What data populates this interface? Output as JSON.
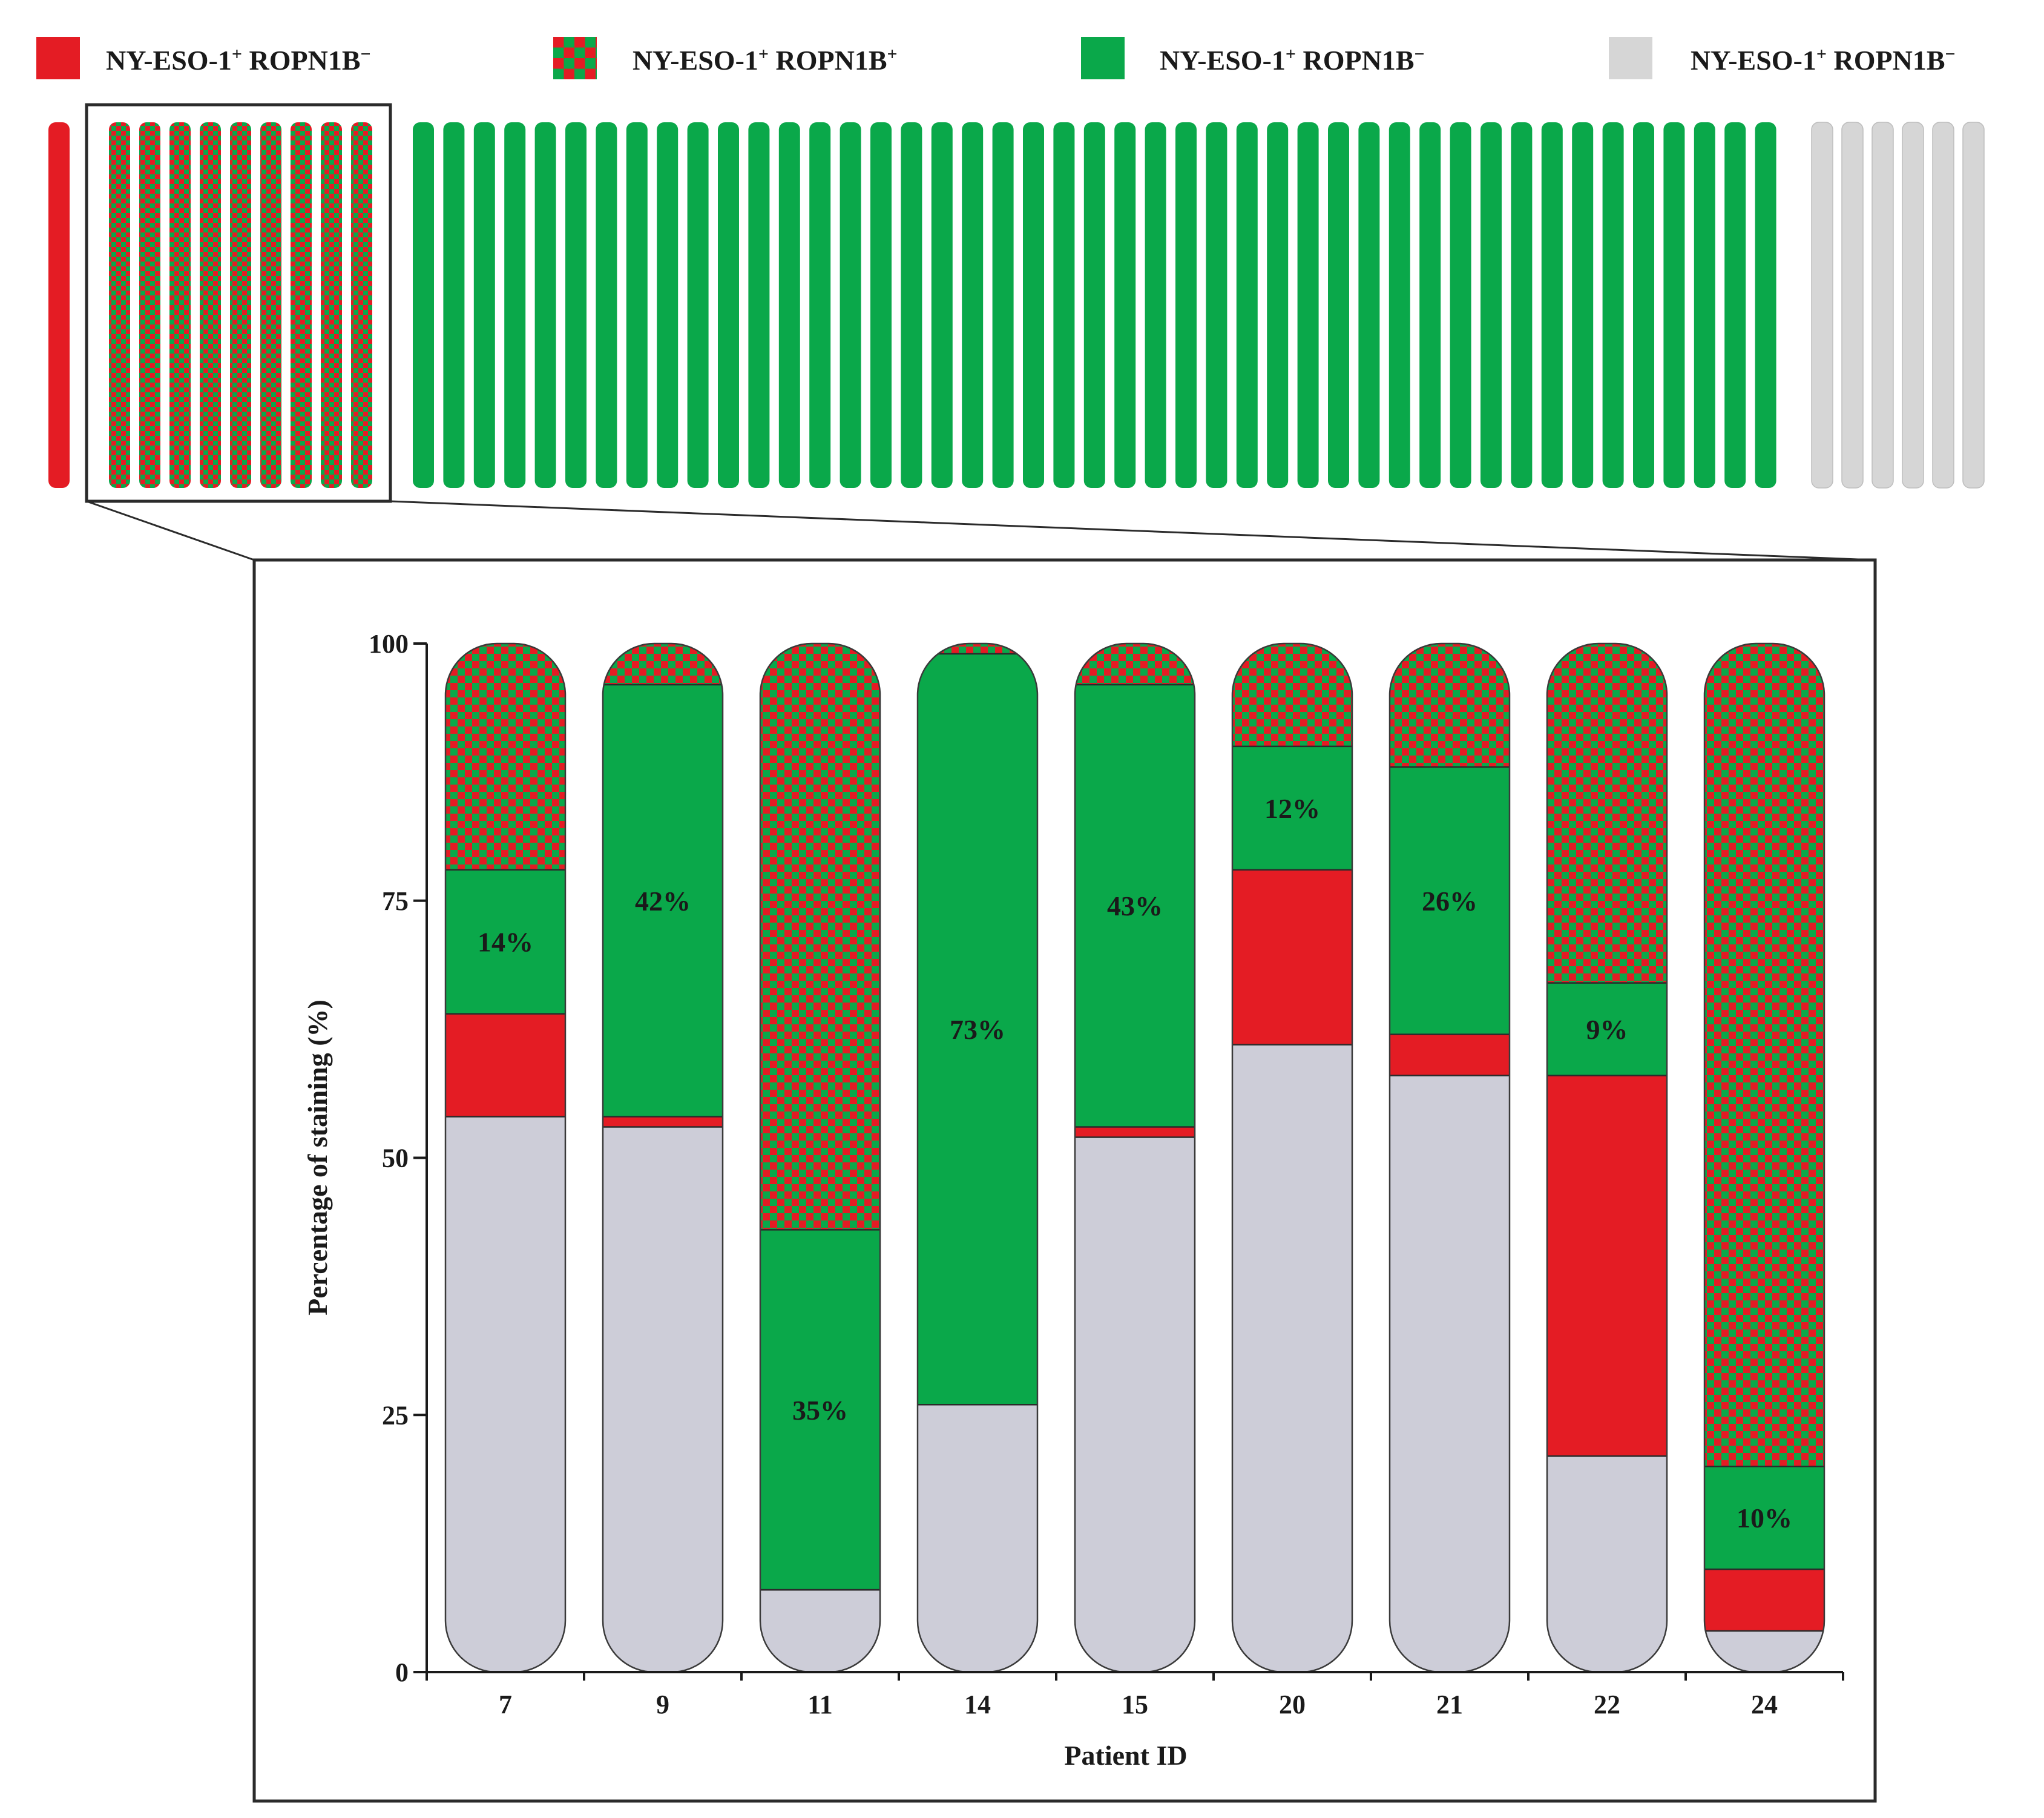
{
  "colors": {
    "red": "#e41c24",
    "green": "#0aa84a",
    "grey": "#cdcdd8",
    "light_grey": "#d6d6d6",
    "frame": "#2b2b2b"
  },
  "legend": [
    {
      "label_main": "NY-ESO-1",
      "sup1": "+",
      "label_second": " ROPN1B",
      "sup2": "−",
      "swatch": "red"
    },
    {
      "label_main": "NY-ESO-1",
      "sup1": "+",
      "label_second": " ROPN1B",
      "sup2": "+",
      "swatch": "checker"
    },
    {
      "label_main": "NY-ESO-1",
      "sup1": "+",
      "label_second": " ROPN1B",
      "sup2": "−",
      "swatch": "green"
    },
    {
      "label_main": "NY-ESO-1",
      "sup1": "+",
      "label_second": " ROPN1B",
      "sup2": "−",
      "swatch": "grey"
    }
  ],
  "overview": {
    "groups": [
      {
        "category": "red",
        "count": 1
      },
      {
        "category": "checker",
        "count": 9
      },
      {
        "category": "green",
        "count": 45
      },
      {
        "category": "grey",
        "count": 6
      }
    ]
  },
  "chart_data": {
    "type": "bar",
    "stacked": true,
    "title": "",
    "xlabel": "Patient ID",
    "ylabel": "Percentage of staining (%)",
    "ylim": [
      0,
      100
    ],
    "yticks": [
      0,
      25,
      50,
      75,
      100
    ],
    "categories": [
      "7",
      "9",
      "11",
      "14",
      "15",
      "20",
      "21",
      "22",
      "24"
    ],
    "series": [
      {
        "name": "Grey",
        "color": "grey",
        "values": [
          54,
          53,
          8,
          26,
          52,
          61,
          58,
          21,
          4
        ]
      },
      {
        "name": "Red",
        "color": "red",
        "values": [
          10,
          1,
          0,
          0,
          1,
          17,
          4,
          37,
          6
        ]
      },
      {
        "name": "Green",
        "color": "green",
        "values": [
          14,
          42,
          35,
          73,
          43,
          12,
          26,
          9,
          10
        ]
      },
      {
        "name": "Checker",
        "color": "checker",
        "values": [
          22,
          4,
          57,
          1,
          4,
          10,
          12,
          33,
          80
        ]
      }
    ],
    "data_labels": [
      "14%",
      "42%",
      "35%",
      "73%",
      "43%",
      "12%",
      "26%",
      "9%",
      "10%"
    ]
  }
}
